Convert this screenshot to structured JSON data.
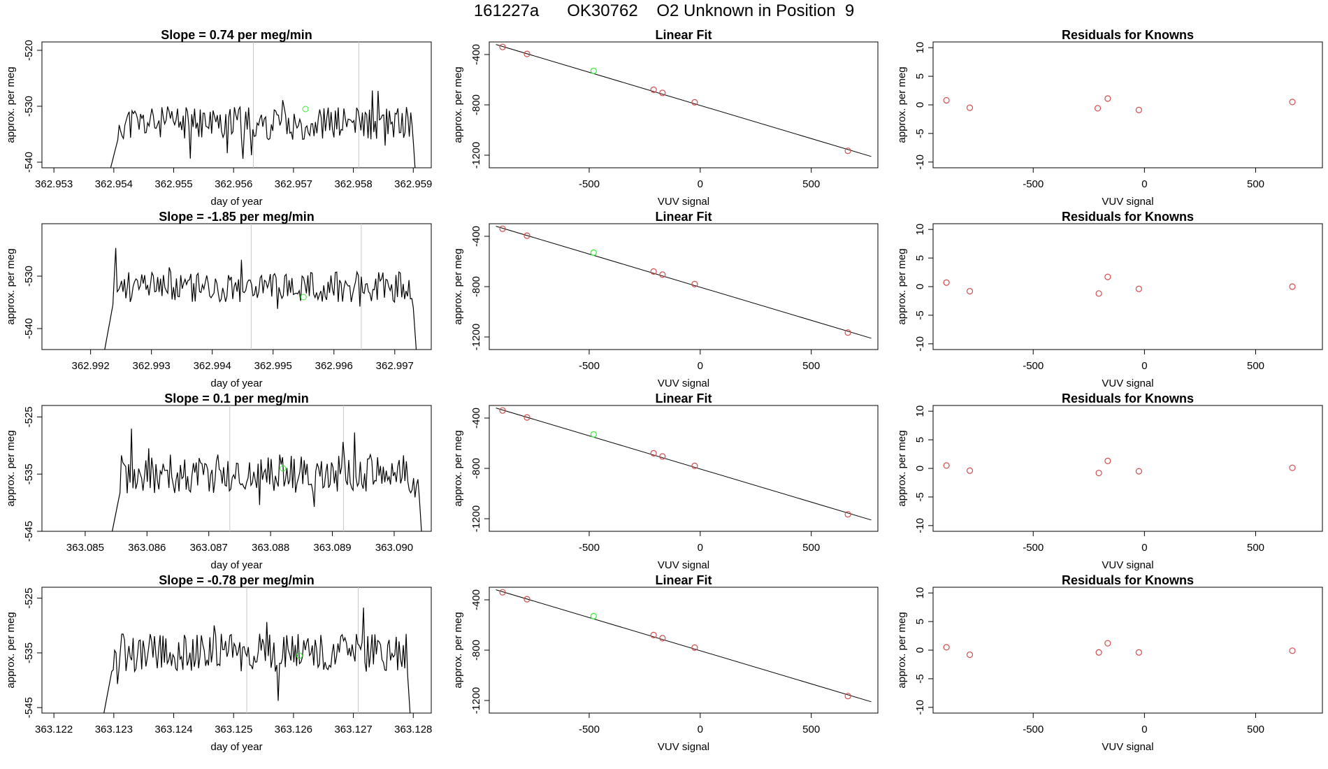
{
  "figure": {
    "title": "161227a      OK30762    O2 Unknown in Position  9"
  },
  "chart_data": [
    {
      "type": "line",
      "row": 1,
      "title": "Slope =  0.74  per meg/min",
      "xlabel": "day of year",
      "ylabel": "approx. per meg",
      "xlim": [
        362.9528,
        362.9593
      ],
      "ylim": [
        -541,
        -518.5
      ],
      "xticks": [
        "362.953",
        "362.954",
        "362.955",
        "362.956",
        "362.957",
        "362.958",
        "362.959"
      ],
      "yticks": [
        "-540",
        "-530",
        "-520"
      ],
      "vlines": [
        362.95633,
        362.95809
      ],
      "start": 362.9539,
      "end": 362.9591,
      "plateau": -533,
      "amp": 3,
      "seed": 11,
      "green_point": [
        362.9572,
        -530.5
      ]
    },
    {
      "type": "scatter",
      "row": 1,
      "title": "Linear Fit",
      "xlabel": "VUV signal",
      "ylabel": "approx. per meg",
      "xlim": [
        -950,
        800
      ],
      "ylim": [
        -1300,
        -300
      ],
      "xticks": [
        "-500",
        "0",
        "500"
      ],
      "yticks": [
        "-1200",
        "-800",
        "-400"
      ],
      "line": [
        [
          -920,
          -320
        ],
        [
          770,
          -1210
        ]
      ],
      "points": [
        [
          -890,
          -340
        ],
        [
          -780,
          -395
        ],
        [
          -210,
          -680
        ],
        [
          -170,
          -705
        ],
        [
          -25,
          -780
        ],
        [
          665,
          -1165
        ]
      ],
      "green_point": [
        -480,
        -530
      ]
    },
    {
      "type": "scatter",
      "row": 1,
      "title": "Residuals for Knowns",
      "xlabel": "VUV signal",
      "ylabel": "approx. per meg",
      "xlim": [
        -950,
        800
      ],
      "ylim": [
        -11,
        11
      ],
      "xticks": [
        "-500",
        "0",
        "500"
      ],
      "yticks": [
        "-10",
        "-5",
        "0",
        "5",
        "10"
      ],
      "points": [
        [
          -890,
          0.8
        ],
        [
          -785,
          -0.5
        ],
        [
          -210,
          -0.6
        ],
        [
          -165,
          1.1
        ],
        [
          -25,
          -0.9
        ],
        [
          665,
          0.5
        ]
      ]
    },
    {
      "type": "line",
      "row": 2,
      "title": "Slope =  -1.85  per meg/min",
      "xlabel": "day of year",
      "ylabel": "approx. per meg",
      "xlim": [
        362.9912,
        362.9976
      ],
      "ylim": [
        -544,
        -520
      ],
      "xticks": [
        "362.992",
        "362.993",
        "362.994",
        "362.995",
        "362.996",
        "362.997"
      ],
      "yticks": [
        "-540",
        "-530"
      ],
      "vlines": [
        362.99464,
        362.99645
      ],
      "start": 362.9922,
      "end": 362.9974,
      "plateau": -532,
      "amp": 3,
      "seed": 23,
      "green_point": [
        362.9955,
        -534
      ]
    },
    {
      "type": "scatter",
      "row": 2,
      "title": "Linear Fit",
      "xlabel": "VUV signal",
      "ylabel": "approx. per meg",
      "xlim": [
        -950,
        800
      ],
      "ylim": [
        -1300,
        -300
      ],
      "xticks": [
        "-500",
        "0",
        "500"
      ],
      "yticks": [
        "-1200",
        "-800",
        "-400"
      ],
      "line": [
        [
          -920,
          -320
        ],
        [
          770,
          -1210
        ]
      ],
      "points": [
        [
          -890,
          -340
        ],
        [
          -780,
          -395
        ],
        [
          -210,
          -680
        ],
        [
          -170,
          -705
        ],
        [
          -25,
          -780
        ],
        [
          665,
          -1165
        ]
      ],
      "green_point": [
        -480,
        -530
      ]
    },
    {
      "type": "scatter",
      "row": 2,
      "title": "Residuals for Knowns",
      "xlabel": "VUV signal",
      "ylabel": "approx. per meg",
      "xlim": [
        -950,
        800
      ],
      "ylim": [
        -11,
        11
      ],
      "xticks": [
        "-500",
        "0",
        "500"
      ],
      "yticks": [
        "-10",
        "-5",
        "0",
        "5",
        "10"
      ],
      "points": [
        [
          -890,
          0.7
        ],
        [
          -785,
          -0.8
        ],
        [
          -205,
          -1.2
        ],
        [
          -165,
          1.7
        ],
        [
          -25,
          -0.4
        ],
        [
          665,
          0.0
        ]
      ]
    },
    {
      "type": "line",
      "row": 3,
      "title": "Slope =  0.1  per meg/min",
      "xlabel": "day of year",
      "ylabel": "approx. per meg",
      "xlim": [
        363.0843,
        363.0906
      ],
      "ylim": [
        -545,
        -523
      ],
      "xticks": [
        "363.085",
        "363.086",
        "363.087",
        "363.088",
        "363.089",
        "363.090"
      ],
      "yticks": [
        "-545",
        "-535",
        "-525"
      ],
      "vlines": [
        363.08734,
        363.08918
      ],
      "start": 363.0854,
      "end": 363.0905,
      "plateau": -535,
      "amp": 3.5,
      "seed": 37,
      "green_point": [
        363.0882,
        -534
      ]
    },
    {
      "type": "scatter",
      "row": 3,
      "title": "Linear Fit",
      "xlabel": "VUV signal",
      "ylabel": "approx. per meg",
      "xlim": [
        -950,
        800
      ],
      "ylim": [
        -1300,
        -300
      ],
      "xticks": [
        "-500",
        "0",
        "500"
      ],
      "yticks": [
        "-1200",
        "-800",
        "-400"
      ],
      "line": [
        [
          -920,
          -320
        ],
        [
          770,
          -1210
        ]
      ],
      "points": [
        [
          -890,
          -340
        ],
        [
          -780,
          -395
        ],
        [
          -210,
          -680
        ],
        [
          -170,
          -705
        ],
        [
          -25,
          -780
        ],
        [
          665,
          -1165
        ]
      ],
      "green_point": [
        -480,
        -530
      ]
    },
    {
      "type": "scatter",
      "row": 3,
      "title": "Residuals for Knowns",
      "xlabel": "VUV signal",
      "ylabel": "approx. per meg",
      "xlim": [
        -950,
        800
      ],
      "ylim": [
        -11,
        11
      ],
      "xticks": [
        "-500",
        "0",
        "500"
      ],
      "yticks": [
        "-10",
        "-5",
        "0",
        "5",
        "10"
      ],
      "points": [
        [
          -890,
          0.5
        ],
        [
          -785,
          -0.4
        ],
        [
          -205,
          -0.8
        ],
        [
          -165,
          1.3
        ],
        [
          -25,
          -0.5
        ],
        [
          665,
          0.1
        ]
      ]
    },
    {
      "type": "line",
      "row": 4,
      "title": "Slope =  -0.78  per meg/min",
      "xlabel": "day of year",
      "ylabel": "approx. per meg",
      "xlim": [
        363.1218,
        363.1283
      ],
      "ylim": [
        -546,
        -523
      ],
      "xticks": [
        "363.122",
        "363.123",
        "363.124",
        "363.125",
        "363.126",
        "363.127",
        "363.128"
      ],
      "yticks": [
        "-545",
        "-535",
        "-525"
      ],
      "vlines": [
        363.12522,
        363.12708
      ],
      "start": 363.1228,
      "end": 363.128,
      "plateau": -535,
      "amp": 3.5,
      "seed": 53,
      "green_point": [
        363.1261,
        -535.5
      ]
    },
    {
      "type": "scatter",
      "row": 4,
      "title": "Linear Fit",
      "xlabel": "VUV signal",
      "ylabel": "approx. per meg",
      "xlim": [
        -950,
        800
      ],
      "ylim": [
        -1300,
        -300
      ],
      "xticks": [
        "-500",
        "0",
        "500"
      ],
      "yticks": [
        "-1200",
        "-800",
        "-400"
      ],
      "line": [
        [
          -920,
          -320
        ],
        [
          770,
          -1210
        ]
      ],
      "points": [
        [
          -890,
          -340
        ],
        [
          -780,
          -395
        ],
        [
          -210,
          -680
        ],
        [
          -170,
          -705
        ],
        [
          -25,
          -780
        ],
        [
          665,
          -1165
        ]
      ],
      "green_point": [
        -480,
        -530
      ]
    },
    {
      "type": "scatter",
      "row": 4,
      "title": "Residuals for Knowns",
      "xlabel": "VUV signal",
      "ylabel": "approx. per meg",
      "xlim": [
        -950,
        800
      ],
      "ylim": [
        -11,
        11
      ],
      "xticks": [
        "-500",
        "0",
        "500"
      ],
      "yticks": [
        "-10",
        "-5",
        "0",
        "5",
        "10"
      ],
      "points": [
        [
          -890,
          0.5
        ],
        [
          -785,
          -0.8
        ],
        [
          -205,
          -0.4
        ],
        [
          -165,
          1.2
        ],
        [
          -25,
          -0.4
        ],
        [
          665,
          -0.1
        ]
      ]
    }
  ],
  "colors": {
    "line": "#000000",
    "point": "#d44a4a",
    "green": "#33ee33",
    "vline": "#c8c8c8"
  }
}
